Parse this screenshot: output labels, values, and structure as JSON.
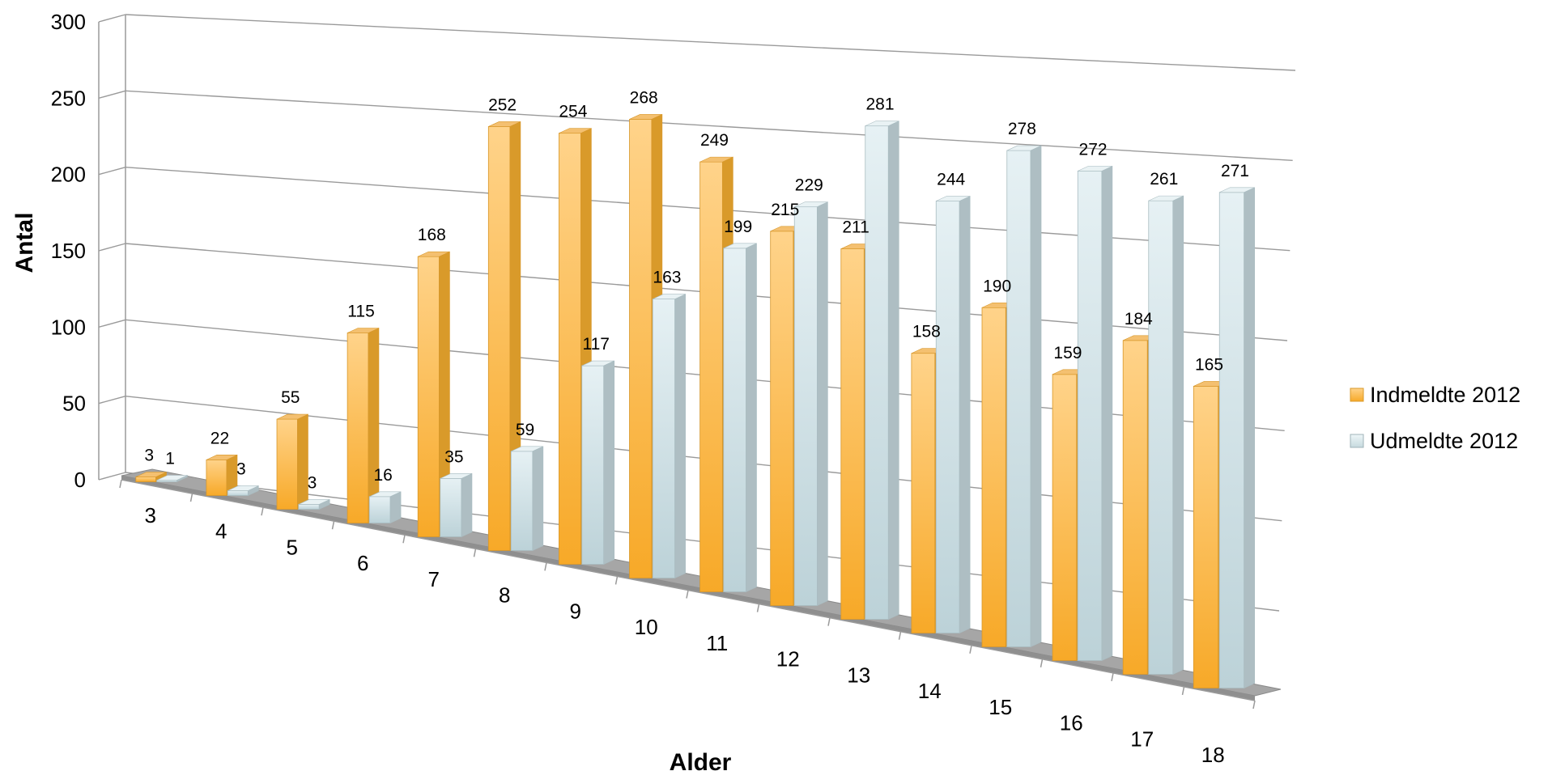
{
  "chart_data": {
    "type": "bar",
    "title": "",
    "xlabel": "Alder",
    "ylabel": "Antal",
    "ylim": [
      0,
      300
    ],
    "yticks": [
      0,
      50,
      100,
      150,
      200,
      250,
      300
    ],
    "categories": [
      "3",
      "4",
      "5",
      "6",
      "7",
      "8",
      "9",
      "10",
      "11",
      "12",
      "13",
      "14",
      "15",
      "16",
      "17",
      "18"
    ],
    "series": [
      {
        "name": "Indmeldte 2012",
        "color": "#f7b233",
        "values": [
          3,
          22,
          55,
          115,
          168,
          252,
          254,
          268,
          249,
          215,
          211,
          158,
          190,
          159,
          184,
          165
        ]
      },
      {
        "name": "Udmeldte 2012",
        "color": "#d6e6ea",
        "values": [
          1,
          3,
          3,
          16,
          35,
          59,
          117,
          163,
          199,
          229,
          281,
          244,
          278,
          272,
          261,
          271
        ]
      }
    ],
    "grid": true,
    "legend": "right",
    "style": "3d-clustered-column"
  }
}
